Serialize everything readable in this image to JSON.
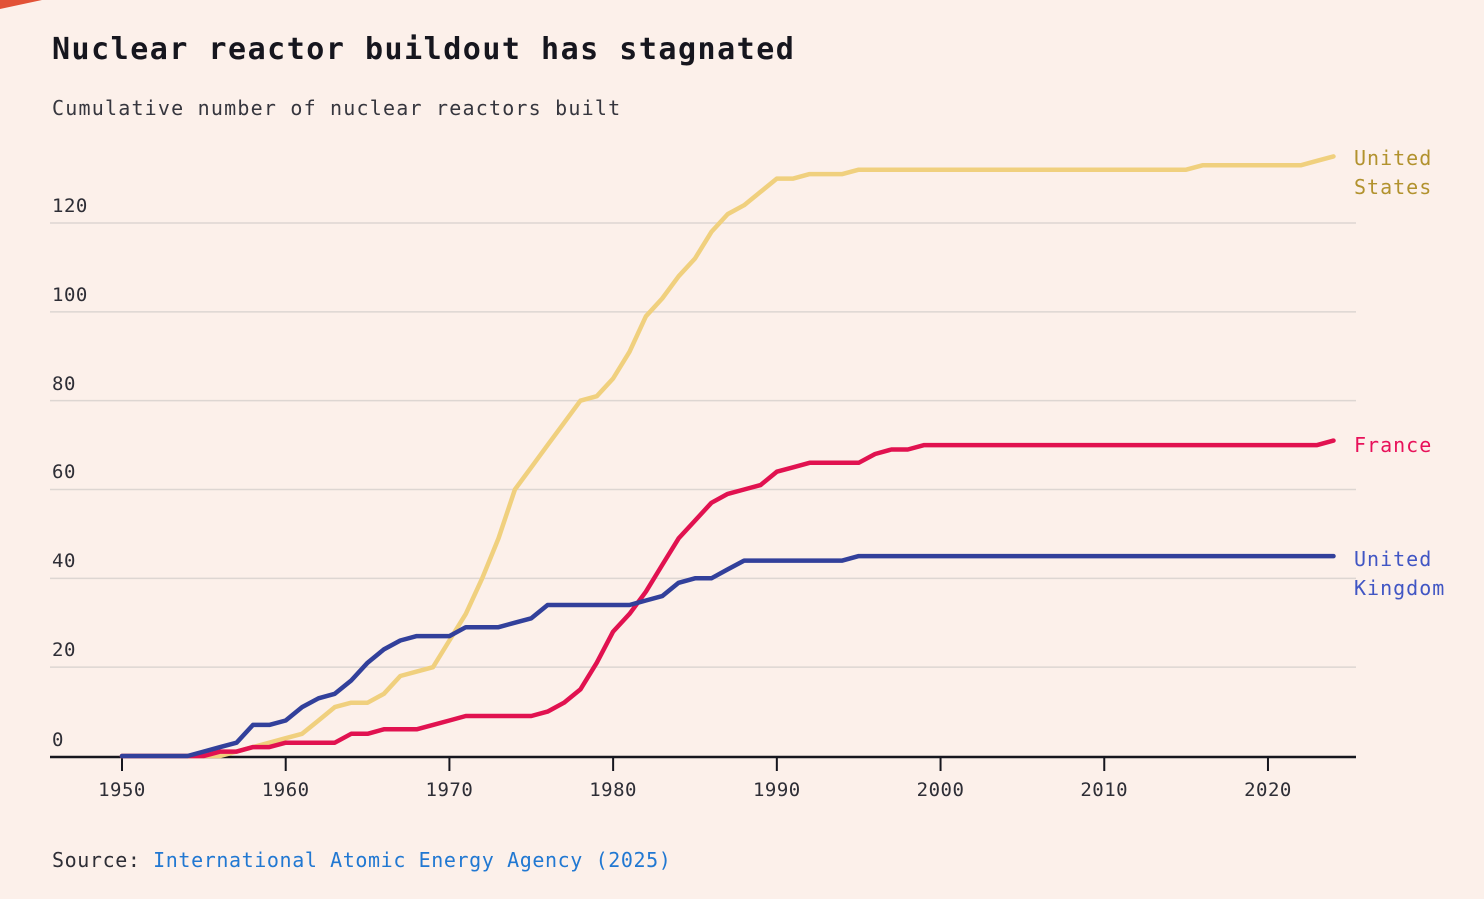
{
  "theme": {
    "background": "#fcf0ea",
    "title_color": "#16161e",
    "subtitle_color": "#36363e",
    "grid_color": "#ddd6d2",
    "axis_color": "#16161e",
    "tick_label_color": "#2e2e36",
    "link_color": "#2178d2",
    "corner_mark_color": "#e25237"
  },
  "header": {
    "title": "Nuclear reactor buildout has stagnated",
    "subtitle": "Cumulative number of nuclear reactors built"
  },
  "source": {
    "prefix": "Source: ",
    "link": "International Atomic Energy Agency (2025)"
  },
  "chart_data": {
    "type": "line",
    "title": "Nuclear reactor buildout has stagnated",
    "subtitle": "Cumulative number of nuclear reactors built",
    "xlabel": "",
    "ylabel": "Cumulative number of nuclear reactors built",
    "grid": true,
    "legend_position": "right",
    "xlim": [
      1950,
      2025.4
    ],
    "ylim": [
      0,
      135
    ],
    "yticks": [
      0,
      20,
      40,
      60,
      80,
      100,
      120
    ],
    "xticks": [
      1950,
      1960,
      1970,
      1980,
      1990,
      2000,
      2010,
      2020
    ],
    "years": [
      1950,
      1951,
      1952,
      1953,
      1954,
      1955,
      1956,
      1957,
      1958,
      1959,
      1960,
      1961,
      1962,
      1963,
      1964,
      1965,
      1966,
      1967,
      1968,
      1969,
      1970,
      1971,
      1972,
      1973,
      1974,
      1975,
      1976,
      1977,
      1978,
      1979,
      1980,
      1981,
      1982,
      1983,
      1984,
      1985,
      1986,
      1987,
      1988,
      1989,
      1990,
      1991,
      1992,
      1993,
      1994,
      1995,
      1996,
      1997,
      1998,
      1999,
      2000,
      2001,
      2002,
      2003,
      2004,
      2005,
      2006,
      2007,
      2008,
      2009,
      2010,
      2011,
      2012,
      2013,
      2014,
      2015,
      2016,
      2017,
      2018,
      2019,
      2020,
      2021,
      2022,
      2023,
      2024
    ],
    "series": [
      {
        "name": "United States",
        "label_lines": [
          "United",
          "States"
        ],
        "color": "#f0d07e",
        "label_color": "#b2922e",
        "values": [
          0,
          0,
          0,
          0,
          0,
          0,
          0,
          1,
          2,
          3,
          4,
          5,
          8,
          11,
          12,
          12,
          14,
          18,
          19,
          20,
          26,
          32,
          40,
          49,
          60,
          65,
          70,
          75,
          80,
          81,
          85,
          91,
          99,
          103,
          108,
          112,
          118,
          122,
          124,
          127,
          130,
          130,
          131,
          131,
          131,
          132,
          132,
          132,
          132,
          132,
          132,
          132,
          132,
          132,
          132,
          132,
          132,
          132,
          132,
          132,
          132,
          132,
          132,
          132,
          132,
          132,
          133,
          133,
          133,
          133,
          133,
          133,
          133,
          134,
          135
        ]
      },
      {
        "name": "France",
        "label_lines": [
          "France"
        ],
        "color": "#e11250",
        "label_color": "#e8115a",
        "values": [
          0,
          0,
          0,
          0,
          0,
          0,
          1,
          1,
          2,
          2,
          3,
          3,
          3,
          3,
          5,
          5,
          6,
          6,
          6,
          7,
          8,
          9,
          9,
          9,
          9,
          9,
          10,
          12,
          15,
          21,
          28,
          32,
          37,
          43,
          49,
          53,
          57,
          59,
          60,
          61,
          64,
          65,
          66,
          66,
          66,
          66,
          68,
          69,
          69,
          70,
          70,
          70,
          70,
          70,
          70,
          70,
          70,
          70,
          70,
          70,
          70,
          70,
          70,
          70,
          70,
          70,
          70,
          70,
          70,
          70,
          70,
          70,
          70,
          70,
          71
        ]
      },
      {
        "name": "United Kingdom",
        "label_lines": [
          "United",
          "Kingdom"
        ],
        "color": "#32409b",
        "label_color": "#4156c4",
        "values": [
          0,
          0,
          0,
          0,
          0,
          1,
          2,
          3,
          7,
          7,
          8,
          11,
          13,
          14,
          17,
          21,
          24,
          26,
          27,
          27,
          27,
          29,
          29,
          29,
          30,
          31,
          34,
          34,
          34,
          34,
          34,
          34,
          35,
          36,
          39,
          40,
          40,
          42,
          44,
          44,
          44,
          44,
          44,
          44,
          44,
          45,
          45,
          45,
          45,
          45,
          45,
          45,
          45,
          45,
          45,
          45,
          45,
          45,
          45,
          45,
          45,
          45,
          45,
          45,
          45,
          45,
          45,
          45,
          45,
          45,
          45,
          45,
          45,
          45,
          45
        ]
      }
    ]
  }
}
